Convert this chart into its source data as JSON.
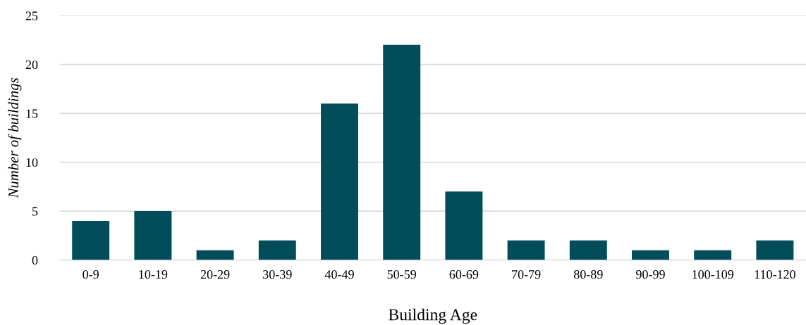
{
  "chart_data": {
    "type": "bar",
    "xlabel": "Building Age",
    "ylabel": "Number of buildings",
    "categories": [
      "0-9",
      "10-19",
      "20-29",
      "30-39",
      "40-49",
      "50-59",
      "60-69",
      "70-79",
      "80-89",
      "90-99",
      "100-109",
      "110-120"
    ],
    "values": [
      4,
      5,
      1,
      2,
      16,
      22,
      7,
      2,
      2,
      1,
      1,
      2
    ],
    "color": "#014d5a",
    "ylim": [
      0,
      25
    ],
    "yticks": [
      0,
      5,
      10,
      15,
      20,
      25
    ],
    "grid": "y",
    "legend": false
  }
}
